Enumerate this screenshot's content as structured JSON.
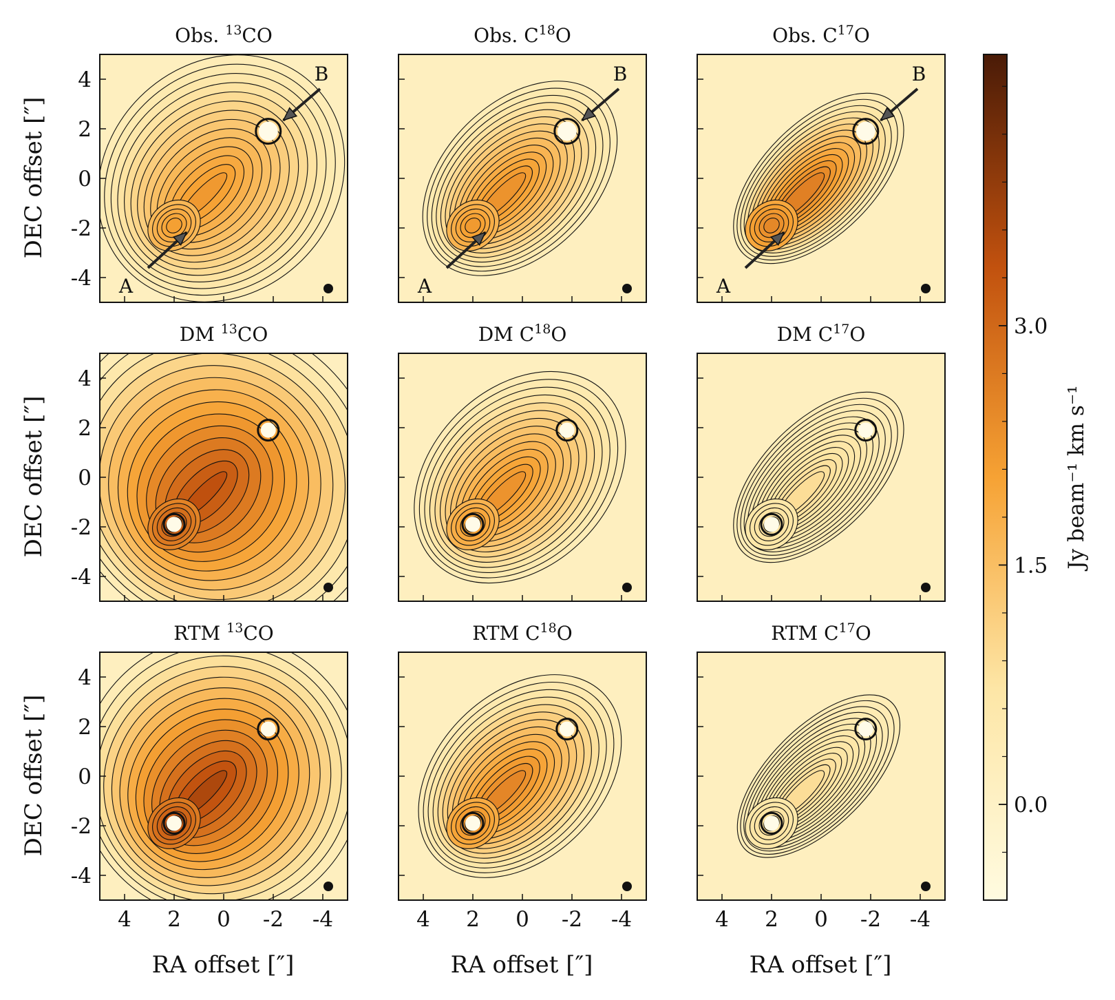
{
  "figure": {
    "ylabel": "DEC offset [″]",
    "xlabel": "RA offset [″]"
  },
  "chart_data": {
    "type": "heatmap",
    "xlim": [
      5,
      -5
    ],
    "ylim": [
      -5,
      5
    ],
    "x_ticks": [
      4,
      2,
      0,
      -2,
      -4
    ],
    "y_ticks": [
      4,
      2,
      0,
      -2,
      -4
    ],
    "x_tick_labels": [
      "4",
      "2",
      "0",
      "-2",
      "-4"
    ],
    "y_tick_labels": [
      "4",
      "2",
      "0",
      "-2",
      "-4"
    ],
    "colorbar": {
      "label": "Jy beam⁻¹ km s⁻¹",
      "ticks": [
        0.0,
        1.5,
        3.0
      ],
      "tick_labels": [
        "0.0",
        "1.5",
        "3.0"
      ],
      "range": [
        -0.6,
        4.7
      ],
      "colors": [
        "#fffbe0",
        "#fde6a6",
        "#f6a234",
        "#c1510e",
        "#4a1b07"
      ]
    },
    "sources": [
      {
        "label": "A",
        "ra": 2.0,
        "dec": -1.9
      },
      {
        "label": "B",
        "ra": -1.8,
        "dec": 1.9
      }
    ],
    "panels": [
      {
        "title_prefix": "Obs. ",
        "mol": "13CO",
        "iso_sup": "13",
        "pre": "",
        "post": "CO",
        "row": 0,
        "col": 0,
        "peak": 2.2,
        "extent": 1.6,
        "markers": true,
        "beam": true
      },
      {
        "title_prefix": "Obs. ",
        "mol": "C18O",
        "iso_sup": "18",
        "pre": "C",
        "post": "O",
        "row": 0,
        "col": 1,
        "peak": 2.3,
        "extent": 1.0,
        "markers": true,
        "beam": true
      },
      {
        "title_prefix": "Obs. ",
        "mol": "C17O",
        "iso_sup": "17",
        "pre": "C",
        "post": "O",
        "row": 0,
        "col": 2,
        "peak": 2.6,
        "extent": 0.7,
        "markers": true,
        "beam": true
      },
      {
        "title_prefix": "DM ",
        "mol": "13CO",
        "iso_sup": "13",
        "pre": "",
        "post": "CO",
        "row": 1,
        "col": 0,
        "peak": 3.4,
        "extent": 2.4,
        "markers": false,
        "beam": true
      },
      {
        "title_prefix": "DM ",
        "mol": "C18O",
        "iso_sup": "18",
        "pre": "C",
        "post": "O",
        "row": 1,
        "col": 1,
        "peak": 2.3,
        "extent": 1.2,
        "markers": false,
        "beam": true
      },
      {
        "title_prefix": "DM ",
        "mol": "C17O",
        "iso_sup": "17",
        "pre": "C",
        "post": "O",
        "row": 1,
        "col": 2,
        "peak": 0.9,
        "extent": 0.7,
        "markers": false,
        "beam": true
      },
      {
        "title_prefix": "RTM ",
        "mol": "13CO",
        "iso_sup": "13",
        "pre": "",
        "post": "CO",
        "row": 2,
        "col": 0,
        "peak": 3.6,
        "extent": 2.0,
        "markers": false,
        "beam": true
      },
      {
        "title_prefix": "RTM ",
        "mol": "C18O",
        "iso_sup": "18",
        "pre": "C",
        "post": "O",
        "row": 2,
        "col": 1,
        "peak": 2.5,
        "extent": 1.1,
        "markers": false,
        "beam": true
      },
      {
        "title_prefix": "RTM ",
        "mol": "C17O",
        "iso_sup": "17",
        "pre": "C",
        "post": "O",
        "row": 2,
        "col": 2,
        "peak": 0.9,
        "extent": 0.6,
        "markers": false,
        "beam": true
      }
    ]
  }
}
